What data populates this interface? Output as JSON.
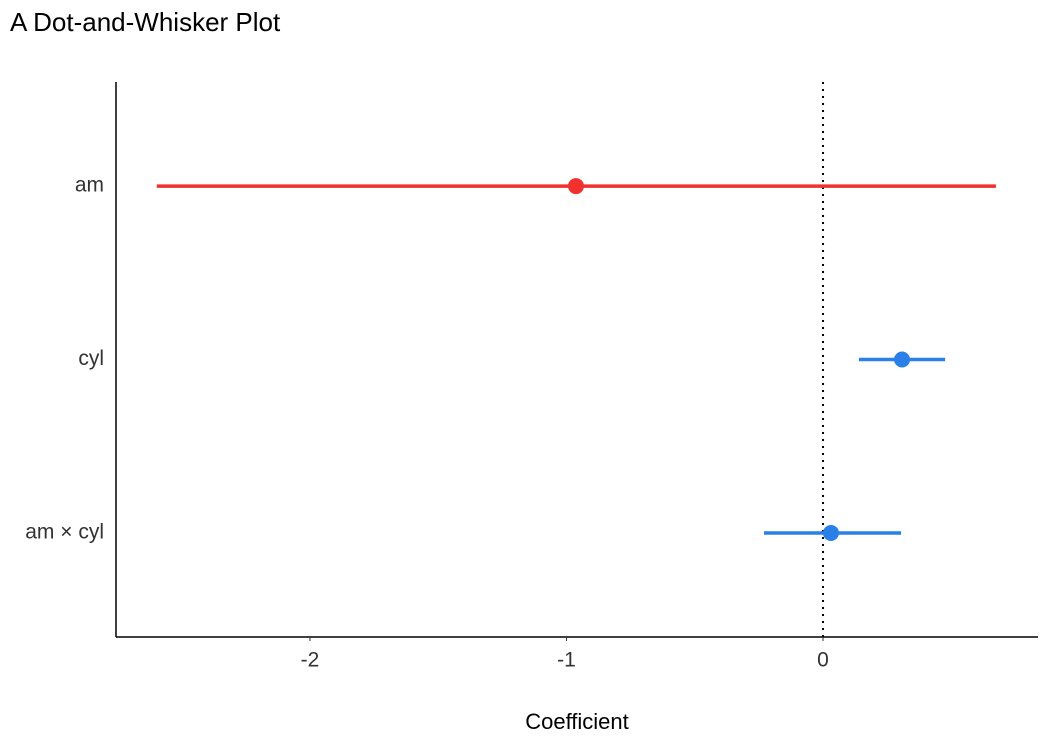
{
  "chart_data": {
    "type": "dotwhisker",
    "title": "A Dot-and-Whisker Plot",
    "xlabel": "Coefficient",
    "categories": [
      "am",
      "cyl",
      "am × cyl"
    ],
    "estimates": [
      -0.963,
      0.308,
      0.031
    ],
    "conf_low": [
      -2.597,
      0.14,
      -0.23
    ],
    "conf_high": [
      0.674,
      0.476,
      0.304
    ],
    "colors": [
      "#f0312e",
      "#2a80e6",
      "#2a80e6"
    ],
    "xlim": [
      -2.756,
      0.838
    ],
    "xticks": [
      -2,
      -1,
      0
    ],
    "reference_line": 0
  }
}
